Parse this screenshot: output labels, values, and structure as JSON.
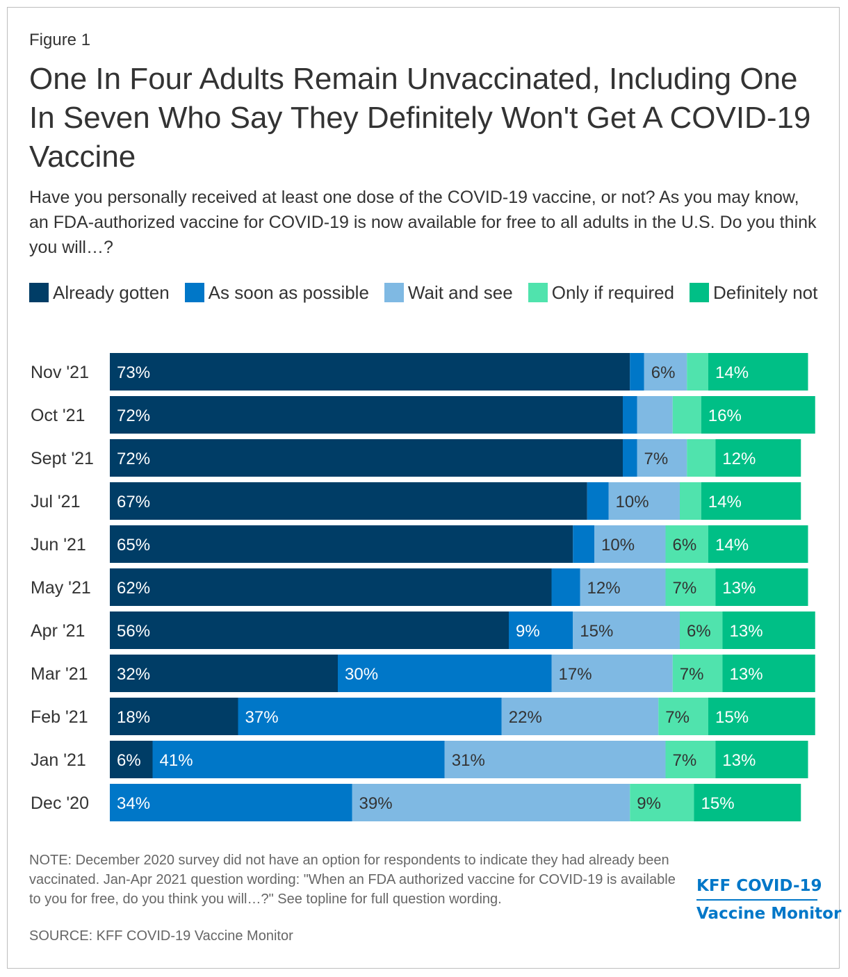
{
  "figure_label": "Figure 1",
  "title": "One In Four Adults Remain Unvaccinated, Including One In Seven Who Say They Definitely Won't Get A COVID-19 Vaccine",
  "subtitle": "Have you personally received at least one dose of the COVID-19 vaccine, or not? As you may know, an FDA-authorized vaccine for COVID-19 is now available for free to all adults in the U.S. Do you think you will…?",
  "note": "NOTE: December 2020 survey did not have an option for respondents to indicate they had already been vaccinated. Jan-Apr 2021 question wording: \"When an FDA authorized vaccine for COVID-19 is available to you for free, do you think you will…?\" See topline for full question wording.",
  "source": "SOURCE: KFF COVID-19 Vaccine Monitor",
  "brand": {
    "line1": "KFF COVID-19",
    "line2": "Vaccine Monitor",
    "color": "#0077c8"
  },
  "chart_data": {
    "type": "bar",
    "orientation": "horizontal",
    "stacked": true,
    "categories": [
      "Nov '21",
      "Oct '21",
      "Sept '21",
      "Jul '21",
      "Jun '21",
      "May '21",
      "Apr '21",
      "Mar '21",
      "Feb '21",
      "Jan '21",
      "Dec '20"
    ],
    "series": [
      {
        "name": "Already gotten",
        "color": "#003d66",
        "label_color": "#ffffff",
        "values": [
          73,
          72,
          72,
          67,
          65,
          62,
          56,
          32,
          18,
          6,
          0
        ],
        "labels": [
          "73%",
          "72%",
          "72%",
          "67%",
          "65%",
          "62%",
          "56%",
          "32%",
          "18%",
          "6%",
          ""
        ]
      },
      {
        "name": "As soon as possible",
        "color": "#0077c8",
        "label_color": "#ffffff",
        "values": [
          2,
          2,
          2,
          3,
          3,
          4,
          9,
          30,
          37,
          41,
          34
        ],
        "labels": [
          "",
          "",
          "",
          "",
          "",
          "",
          "9%",
          "30%",
          "37%",
          "41%",
          "34%"
        ]
      },
      {
        "name": "Wait and see",
        "color": "#7fb9e3",
        "label_color": "#333333",
        "values": [
          6,
          5,
          7,
          10,
          10,
          12,
          15,
          17,
          22,
          31,
          39
        ],
        "labels": [
          "6%",
          "",
          "7%",
          "10%",
          "10%",
          "12%",
          "15%",
          "17%",
          "22%",
          "31%",
          "39%"
        ]
      },
      {
        "name": "Only if required",
        "color": "#50e3ad",
        "label_color": "#333333",
        "values": [
          3,
          4,
          4,
          3,
          6,
          7,
          6,
          7,
          7,
          7,
          9
        ],
        "labels": [
          "",
          "",
          "",
          "",
          "6%",
          "7%",
          "6%",
          "7%",
          "7%",
          "7%",
          "9%"
        ]
      },
      {
        "name": "Definitely not",
        "color": "#00bf86",
        "label_color": "#ffffff",
        "values": [
          14,
          16,
          12,
          14,
          14,
          13,
          13,
          13,
          15,
          13,
          15
        ],
        "labels": [
          "14%",
          "16%",
          "12%",
          "14%",
          "14%",
          "13%",
          "13%",
          "13%",
          "15%",
          "13%",
          "15%"
        ]
      }
    ],
    "xlim": [
      0,
      100
    ],
    "legend_position": "top"
  }
}
